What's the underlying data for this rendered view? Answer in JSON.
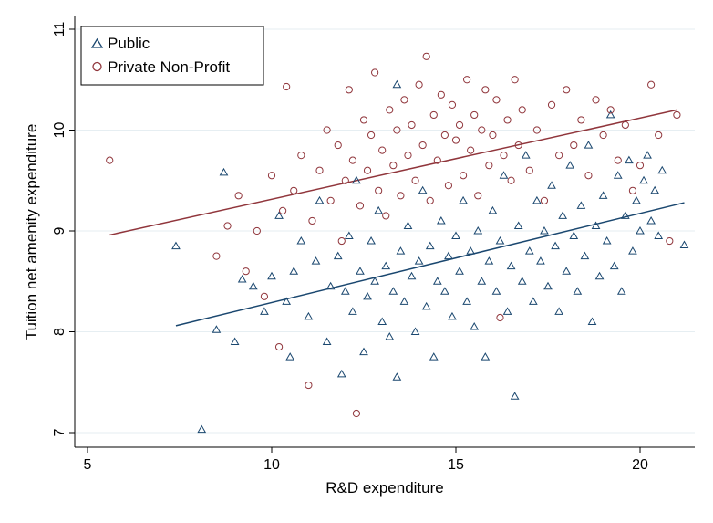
{
  "chart_data": {
    "type": "scatter",
    "title": "",
    "xlabel": "R&D expenditure",
    "ylabel": "Tuition net amenity expenditure",
    "xlim": [
      4.7,
      21.5
    ],
    "ylim": [
      6.85,
      11.15
    ],
    "xticks": [
      "5",
      "10",
      "15",
      "20"
    ],
    "yticks": [
      "7",
      "8",
      "9",
      "10",
      "11"
    ],
    "grid": true,
    "legend_position": "top-left",
    "colors": {
      "public": "#1a476f",
      "private": "#90353b",
      "grid": "#e6eef2"
    },
    "series": [
      {
        "name": "Public",
        "marker": "triangle",
        "fit_line": [
          [
            7.4,
            8.06
          ],
          [
            21.2,
            9.28
          ]
        ],
        "points": [
          [
            7.4,
            8.85
          ],
          [
            8.1,
            7.03
          ],
          [
            8.5,
            8.02
          ],
          [
            8.7,
            9.58
          ],
          [
            9.0,
            7.9
          ],
          [
            9.2,
            8.52
          ],
          [
            9.5,
            8.45
          ],
          [
            9.8,
            8.2
          ],
          [
            10.0,
            8.55
          ],
          [
            10.2,
            9.15
          ],
          [
            10.4,
            8.3
          ],
          [
            10.5,
            7.75
          ],
          [
            10.6,
            8.6
          ],
          [
            10.8,
            8.9
          ],
          [
            11.0,
            8.15
          ],
          [
            11.2,
            8.7
          ],
          [
            11.3,
            9.3
          ],
          [
            11.5,
            7.9
          ],
          [
            11.6,
            8.45
          ],
          [
            11.8,
            8.75
          ],
          [
            11.9,
            7.58
          ],
          [
            12.0,
            8.4
          ],
          [
            12.1,
            8.95
          ],
          [
            12.2,
            8.2
          ],
          [
            12.3,
            9.5
          ],
          [
            12.4,
            8.6
          ],
          [
            12.5,
            7.8
          ],
          [
            12.6,
            8.35
          ],
          [
            12.7,
            8.9
          ],
          [
            12.8,
            8.5
          ],
          [
            12.9,
            9.2
          ],
          [
            13.0,
            8.1
          ],
          [
            13.1,
            8.65
          ],
          [
            13.2,
            7.95
          ],
          [
            13.3,
            8.4
          ],
          [
            13.4,
            10.45
          ],
          [
            13.4,
            7.55
          ],
          [
            13.5,
            8.8
          ],
          [
            13.6,
            8.3
          ],
          [
            13.7,
            9.05
          ],
          [
            13.8,
            8.55
          ],
          [
            13.9,
            8.0
          ],
          [
            14.0,
            8.7
          ],
          [
            14.1,
            9.4
          ],
          [
            14.2,
            8.25
          ],
          [
            14.3,
            8.85
          ],
          [
            14.4,
            7.75
          ],
          [
            14.5,
            8.5
          ],
          [
            14.6,
            9.1
          ],
          [
            14.7,
            8.4
          ],
          [
            14.8,
            8.75
          ],
          [
            14.9,
            8.15
          ],
          [
            15.0,
            8.95
          ],
          [
            15.1,
            8.6
          ],
          [
            15.2,
            9.3
          ],
          [
            15.3,
            8.3
          ],
          [
            15.4,
            8.8
          ],
          [
            15.5,
            8.05
          ],
          [
            15.6,
            9.0
          ],
          [
            15.7,
            8.5
          ],
          [
            15.8,
            7.75
          ],
          [
            15.9,
            8.7
          ],
          [
            16.0,
            9.2
          ],
          [
            16.1,
            8.4
          ],
          [
            16.2,
            8.9
          ],
          [
            16.3,
            9.55
          ],
          [
            16.4,
            8.2
          ],
          [
            16.5,
            8.65
          ],
          [
            16.6,
            7.36
          ],
          [
            16.7,
            9.05
          ],
          [
            16.8,
            8.5
          ],
          [
            16.9,
            9.75
          ],
          [
            17.0,
            8.8
          ],
          [
            17.1,
            8.3
          ],
          [
            17.2,
            9.3
          ],
          [
            17.3,
            8.7
          ],
          [
            17.4,
            9.0
          ],
          [
            17.5,
            8.45
          ],
          [
            17.6,
            9.45
          ],
          [
            17.7,
            8.85
          ],
          [
            17.8,
            8.2
          ],
          [
            17.9,
            9.15
          ],
          [
            18.0,
            8.6
          ],
          [
            18.1,
            9.65
          ],
          [
            18.2,
            8.95
          ],
          [
            18.3,
            8.4
          ],
          [
            18.4,
            9.25
          ],
          [
            18.5,
            8.75
          ],
          [
            18.6,
            9.85
          ],
          [
            18.7,
            8.1
          ],
          [
            18.8,
            9.05
          ],
          [
            18.9,
            8.55
          ],
          [
            19.0,
            9.35
          ],
          [
            19.1,
            8.9
          ],
          [
            19.2,
            10.15
          ],
          [
            19.3,
            8.65
          ],
          [
            19.4,
            9.55
          ],
          [
            19.5,
            8.4
          ],
          [
            19.6,
            9.15
          ],
          [
            19.7,
            9.7
          ],
          [
            19.8,
            8.8
          ],
          [
            19.9,
            9.3
          ],
          [
            20.0,
            9.0
          ],
          [
            20.1,
            9.5
          ],
          [
            20.2,
            9.75
          ],
          [
            20.3,
            9.1
          ],
          [
            20.4,
            9.4
          ],
          [
            20.5,
            8.95
          ],
          [
            20.6,
            9.6
          ],
          [
            21.2,
            8.86
          ]
        ]
      },
      {
        "name": "Private Non-Profit",
        "marker": "circle",
        "fit_line": [
          [
            5.6,
            8.96
          ],
          [
            21.0,
            10.2
          ]
        ],
        "points": [
          [
            5.6,
            9.7
          ],
          [
            8.5,
            8.75
          ],
          [
            8.8,
            9.05
          ],
          [
            9.1,
            9.35
          ],
          [
            9.3,
            8.6
          ],
          [
            9.6,
            9.0
          ],
          [
            9.8,
            8.35
          ],
          [
            10.0,
            9.55
          ],
          [
            10.2,
            7.85
          ],
          [
            10.3,
            9.2
          ],
          [
            10.4,
            10.43
          ],
          [
            10.6,
            9.4
          ],
          [
            10.8,
            9.75
          ],
          [
            11.0,
            7.47
          ],
          [
            11.1,
            9.1
          ],
          [
            11.3,
            9.6
          ],
          [
            11.5,
            10.0
          ],
          [
            11.6,
            9.3
          ],
          [
            11.8,
            9.85
          ],
          [
            11.9,
            8.9
          ],
          [
            12.0,
            9.5
          ],
          [
            12.1,
            10.4
          ],
          [
            12.2,
            9.7
          ],
          [
            12.3,
            7.19
          ],
          [
            12.4,
            9.25
          ],
          [
            12.5,
            10.1
          ],
          [
            12.6,
            9.6
          ],
          [
            12.7,
            9.95
          ],
          [
            12.8,
            10.57
          ],
          [
            12.9,
            9.4
          ],
          [
            13.0,
            9.8
          ],
          [
            13.1,
            9.15
          ],
          [
            13.2,
            10.2
          ],
          [
            13.3,
            9.65
          ],
          [
            13.4,
            10.0
          ],
          [
            13.5,
            9.35
          ],
          [
            13.6,
            10.3
          ],
          [
            13.7,
            9.75
          ],
          [
            13.8,
            10.05
          ],
          [
            13.9,
            9.5
          ],
          [
            14.0,
            10.45
          ],
          [
            14.1,
            9.85
          ],
          [
            14.2,
            10.73
          ],
          [
            14.3,
            9.3
          ],
          [
            14.4,
            10.15
          ],
          [
            14.5,
            9.7
          ],
          [
            14.6,
            10.35
          ],
          [
            14.7,
            9.95
          ],
          [
            14.8,
            9.45
          ],
          [
            14.9,
            10.25
          ],
          [
            15.0,
            9.9
          ],
          [
            15.1,
            10.05
          ],
          [
            15.2,
            9.55
          ],
          [
            15.3,
            10.5
          ],
          [
            15.4,
            9.8
          ],
          [
            15.5,
            10.15
          ],
          [
            15.6,
            9.35
          ],
          [
            15.7,
            10.0
          ],
          [
            15.8,
            10.4
          ],
          [
            15.9,
            9.65
          ],
          [
            16.0,
            9.95
          ],
          [
            16.1,
            10.3
          ],
          [
            16.2,
            8.14
          ],
          [
            16.3,
            9.75
          ],
          [
            16.4,
            10.1
          ],
          [
            16.5,
            9.5
          ],
          [
            16.6,
            10.5
          ],
          [
            16.7,
            9.85
          ],
          [
            16.8,
            10.2
          ],
          [
            17.0,
            9.6
          ],
          [
            17.2,
            10.0
          ],
          [
            17.4,
            9.3
          ],
          [
            17.6,
            10.25
          ],
          [
            17.8,
            9.75
          ],
          [
            18.0,
            10.4
          ],
          [
            18.2,
            9.85
          ],
          [
            18.4,
            10.1
          ],
          [
            18.6,
            9.55
          ],
          [
            18.8,
            10.3
          ],
          [
            19.0,
            9.95
          ],
          [
            19.2,
            10.2
          ],
          [
            19.4,
            9.7
          ],
          [
            19.6,
            10.05
          ],
          [
            19.8,
            9.4
          ],
          [
            20.0,
            9.65
          ],
          [
            20.3,
            10.45
          ],
          [
            20.5,
            9.95
          ],
          [
            20.8,
            8.9
          ],
          [
            21.0,
            10.15
          ]
        ]
      }
    ]
  }
}
